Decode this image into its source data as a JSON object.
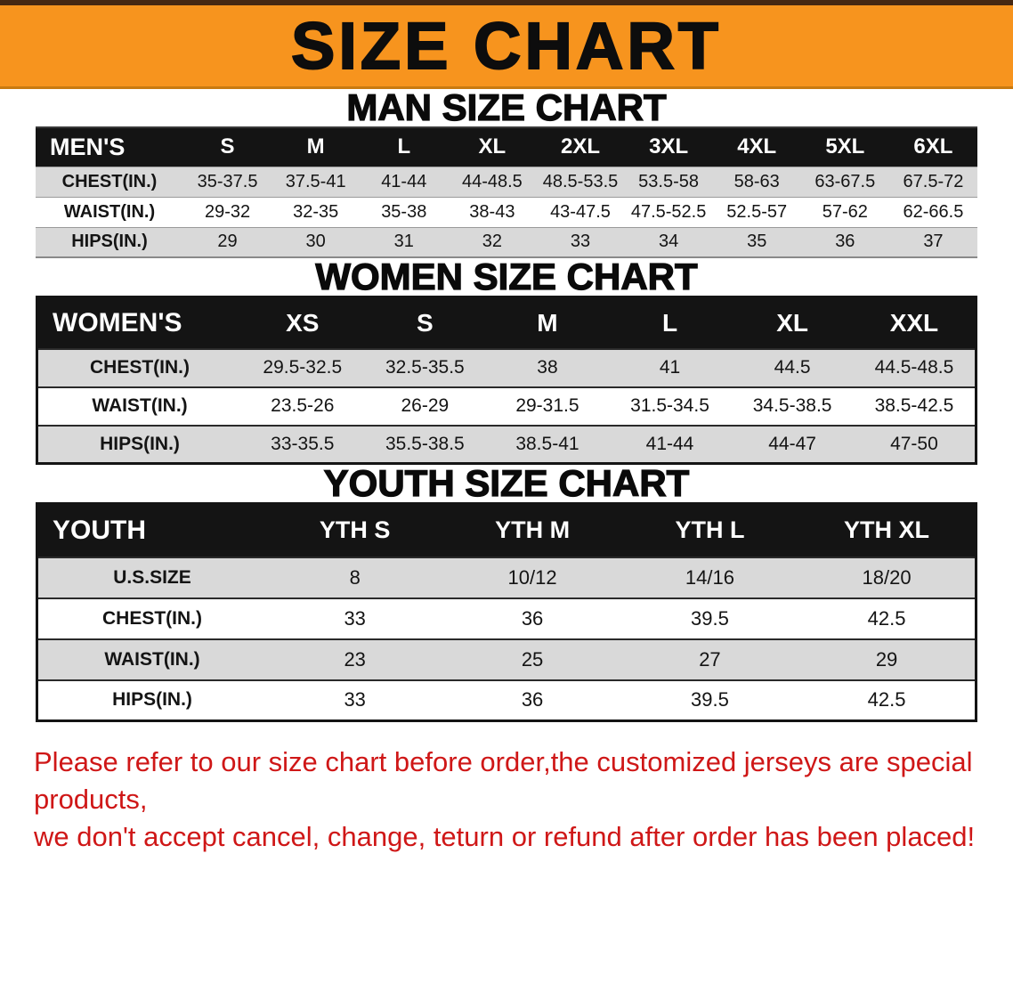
{
  "banner": {
    "title": "SIZE CHART"
  },
  "colors": {
    "banner_bg": "#f7941e",
    "table_header_bg": "#141414",
    "stripe_gray": "#d9d9d9",
    "notice_red": "#cf1717"
  },
  "sections": [
    {
      "heading": "MAN SIZE CHART",
      "table": {
        "header": [
          "MEN'S",
          "S",
          "M",
          "L",
          "XL",
          "2XL",
          "3XL",
          "4XL",
          "5XL",
          "6XL"
        ],
        "rows": [
          [
            "CHEST(IN.)",
            "35-37.5",
            "37.5-41",
            "41-44",
            "44-48.5",
            "48.5-53.5",
            "53.5-58",
            "58-63",
            "63-67.5",
            "67.5-72"
          ],
          [
            "WAIST(IN.)",
            "29-32",
            "32-35",
            "35-38",
            "38-43",
            "43-47.5",
            "47.5-52.5",
            "52.5-57",
            "57-62",
            "62-66.5"
          ],
          [
            "HIPS(IN.)",
            "29",
            "30",
            "31",
            "32",
            "33",
            "34",
            "35",
            "36",
            "37"
          ]
        ]
      }
    },
    {
      "heading": "WOMEN SIZE CHART",
      "table": {
        "header": [
          "WOMEN'S",
          "XS",
          "S",
          "M",
          "L",
          "XL",
          "XXL"
        ],
        "rows": [
          [
            "CHEST(IN.)",
            "29.5-32.5",
            "32.5-35.5",
            "38",
            "41",
            "44.5",
            "44.5-48.5"
          ],
          [
            "WAIST(IN.)",
            "23.5-26",
            "26-29",
            "29-31.5",
            "31.5-34.5",
            "34.5-38.5",
            "38.5-42.5"
          ],
          [
            "HIPS(IN.)",
            "33-35.5",
            "35.5-38.5",
            "38.5-41",
            "41-44",
            "44-47",
            "47-50"
          ]
        ]
      }
    },
    {
      "heading": "YOUTH SIZE CHART",
      "table": {
        "header": [
          "YOUTH",
          "YTH S",
          "YTH M",
          "YTH L",
          "YTH XL"
        ],
        "rows": [
          [
            "U.S.SIZE",
            "8",
            "10/12",
            "14/16",
            "18/20"
          ],
          [
            "CHEST(IN.)",
            "33",
            "36",
            "39.5",
            "42.5"
          ],
          [
            "WAIST(IN.)",
            "23",
            "25",
            "27",
            "29"
          ],
          [
            "HIPS(IN.)",
            "33",
            "36",
            "39.5",
            "42.5"
          ]
        ]
      }
    }
  ],
  "footer": {
    "line1": "Please refer to our size chart before order,the customized jerseys are special products,",
    "line2": "we don't accept cancel, change, teturn or refund after order has been placed!"
  }
}
